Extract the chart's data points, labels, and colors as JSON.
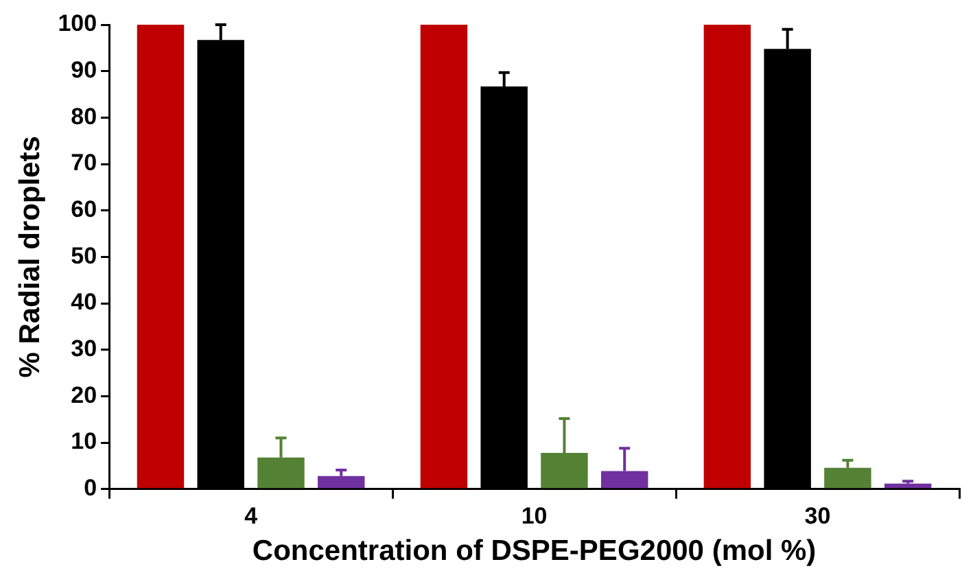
{
  "chart_data": {
    "type": "bar",
    "xlabel": "Concentration of DSPE-PEG2000 (mol %)",
    "ylabel": "% Radial droplets",
    "categories": [
      "4",
      "10",
      "30"
    ],
    "series": [
      {
        "color": "#c00000",
        "values": [
          100,
          100,
          100
        ]
      },
      {
        "color": "#000000",
        "values": [
          96.7,
          86.7,
          94.8
        ],
        "errors": [
          [
            96.7,
            100
          ],
          [
            86.7,
            89.7
          ],
          [
            94.8,
            99
          ]
        ]
      },
      {
        "color": "#548235",
        "values": [
          6.8,
          7.8,
          4.6
        ],
        "errors": [
          [
            6.8,
            11
          ],
          [
            7.8,
            15.2
          ],
          [
            4.6,
            6.2
          ]
        ]
      },
      {
        "color": "#7030a0",
        "values": [
          2.8,
          3.9,
          1.2
        ],
        "errors": [
          [
            2.8,
            4.1
          ],
          [
            3.9,
            8.8
          ],
          [
            1.2,
            1.7
          ]
        ]
      }
    ],
    "ylim": [
      0,
      100
    ],
    "yticks": [
      0,
      10,
      20,
      30,
      40,
      50,
      60,
      70,
      80,
      90,
      100
    ],
    "grid": false,
    "legend": false
  }
}
